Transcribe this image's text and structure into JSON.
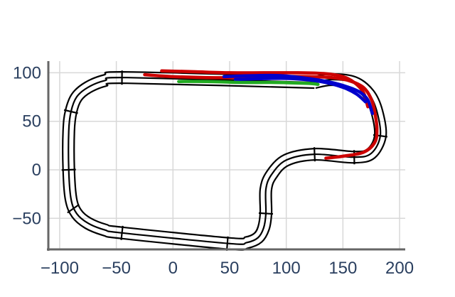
{
  "chart_data": {
    "type": "line",
    "title": "",
    "xlabel": "",
    "ylabel": "",
    "xlim": [
      -110,
      205
    ],
    "ylim": [
      -82,
      112
    ],
    "xticks": [
      -100,
      -50,
      0,
      50,
      100,
      150,
      200
    ],
    "yticks": [
      -50,
      0,
      50,
      100
    ],
    "xtick_labels": [
      "−100",
      "−50",
      "0",
      "50",
      "100",
      "150",
      "200"
    ],
    "ytick_labels": [
      "−50",
      "0",
      "50",
      "100"
    ],
    "grid": true,
    "legend": "none",
    "track": {
      "color": "#000000",
      "lanes": 3,
      "centerline": [
        [
          125,
          90
        ],
        [
          -40,
          95
        ],
        [
          -60,
          92
        ],
        [
          -75,
          85
        ],
        [
          -85,
          75
        ],
        [
          -90,
          60
        ],
        [
          -92,
          40
        ],
        [
          -92,
          0
        ],
        [
          -90,
          -30
        ],
        [
          -85,
          -45
        ],
        [
          -75,
          -55
        ],
        [
          -60,
          -62
        ],
        [
          -45,
          -65
        ],
        [
          50,
          -76
        ],
        [
          65,
          -75
        ],
        [
          75,
          -70
        ],
        [
          80,
          -60
        ],
        [
          82,
          -45
        ],
        [
          82,
          -20
        ],
        [
          87,
          -5
        ],
        [
          100,
          10
        ],
        [
          125,
          16
        ],
        [
          160,
          13
        ],
        [
          175,
          17
        ],
        [
          183,
          35
        ],
        [
          180,
          60
        ],
        [
          173,
          78
        ],
        [
          160,
          90
        ],
        [
          140,
          93
        ],
        [
          125,
          90
        ]
      ],
      "section_marks": [
        [
          -45,
          95
        ],
        [
          -90,
          60
        ],
        [
          -92,
          0
        ],
        [
          -88,
          -40
        ],
        [
          -45,
          -65
        ],
        [
          48,
          -76
        ],
        [
          82,
          -45
        ],
        [
          125,
          16
        ],
        [
          160,
          13
        ],
        [
          183,
          35
        ]
      ]
    },
    "series": [
      {
        "color": "#cc0000",
        "x": [
          -25,
          0,
          30,
          60,
          90,
          120,
          140,
          155,
          168,
          175,
          178,
          180,
          178,
          168,
          150,
          135
        ],
        "y": [
          98,
          96,
          95,
          95,
          96,
          96,
          95,
          92,
          85,
          73,
          60,
          42,
          28,
          18,
          14,
          12
        ]
      },
      {
        "color": "#cc0000",
        "x": [
          -10,
          20,
          50,
          80,
          110,
          135,
          150,
          160,
          168,
          172
        ],
        "y": [
          102,
          101,
          100,
          100,
          100,
          99,
          96,
          90,
          80,
          65
        ]
      },
      {
        "color": "#0000cc",
        "x": [
          45,
          70,
          95,
          120,
          140,
          155,
          165,
          172,
          176
        ],
        "y": [
          96,
          97,
          97,
          94,
          90,
          85,
          80,
          72,
          58
        ]
      },
      {
        "color": "#0000cc",
        "x": [
          55,
          80,
          105,
          130,
          150,
          162,
          170
        ],
        "y": [
          93,
          94,
          94,
          91,
          85,
          78,
          70
        ]
      },
      {
        "color": "#22aa22",
        "x": [
          5,
          30,
          60,
          90,
          120,
          128
        ],
        "y": [
          91,
          91,
          90,
          90,
          89,
          88
        ]
      }
    ]
  }
}
